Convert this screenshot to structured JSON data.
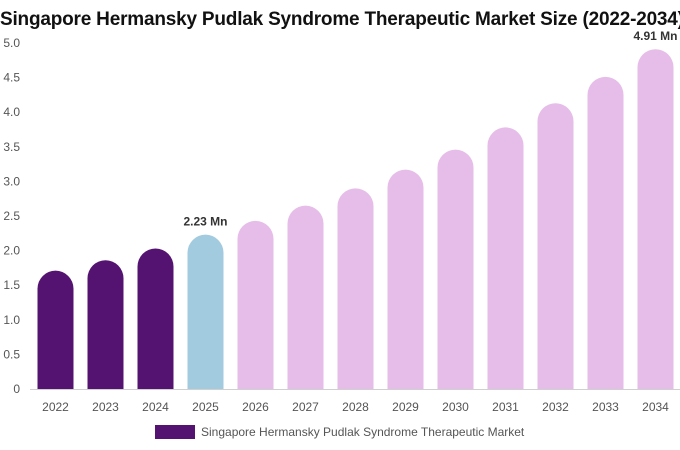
{
  "chart_data": {
    "type": "bar",
    "title": "Singapore Hermansky Pudlak Syndrome Therapeutic Market Size (2022-2034)",
    "xlabel": "",
    "ylabel": "",
    "categories": [
      "2022",
      "2023",
      "2024",
      "2025",
      "2026",
      "2027",
      "2028",
      "2029",
      "2030",
      "2031",
      "2032",
      "2033",
      "2034"
    ],
    "series": [
      {
        "name": "Singapore Hermansky Pudlak Syndrome Therapeutic Market",
        "values": [
          1.71,
          1.86,
          2.03,
          2.23,
          2.43,
          2.65,
          2.9,
          3.17,
          3.46,
          3.78,
          4.13,
          4.51,
          4.91
        ]
      }
    ],
    "bar_colors": [
      "#541371",
      "#541371",
      "#541371",
      "#a3cbdf",
      "#e6bce9",
      "#e6bce9",
      "#e6bce9",
      "#e6bce9",
      "#e6bce9",
      "#e6bce9",
      "#e6bce9",
      "#e6bce9",
      "#e6bce9"
    ],
    "data_labels": [
      {
        "index": 3,
        "text": "2.23 Mn"
      },
      {
        "index": 12,
        "text": "4.91 Mn"
      }
    ],
    "ylim": [
      0,
      5.0
    ],
    "yticks": [
      "0",
      "0.5",
      "1.0",
      "1.5",
      "2.0",
      "2.5",
      "3.0",
      "3.5",
      "4.0",
      "4.5",
      "5.0"
    ],
    "grid": false,
    "legend": {
      "placement": "bottom-center",
      "color": "#541371"
    }
  }
}
